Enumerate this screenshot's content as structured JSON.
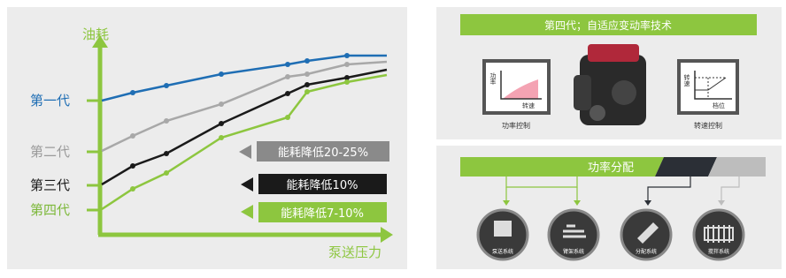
{
  "chart_panel": {
    "y_axis_label": "油耗",
    "x_axis_label": "泵送压力",
    "series_labels": [
      "第一代",
      "第二代",
      "第三代",
      "第四代"
    ],
    "callouts": [
      "能耗降低20-25%",
      "能耗降低10%",
      "能耗降低7-10%"
    ]
  },
  "technology_panel": {
    "title": "第四代；自适应变动率技术",
    "power_icon": {
      "y_label": "功率",
      "x_label": "转速",
      "caption": "功率控制"
    },
    "speed_icon": {
      "y_label": "转速",
      "x_label": "档位",
      "caption": "转速控制"
    }
  },
  "distribution_panel": {
    "title": "功率分配",
    "systems": [
      "泵送系统",
      "臂架系统",
      "分配系统",
      "搅拌系统"
    ]
  }
}
